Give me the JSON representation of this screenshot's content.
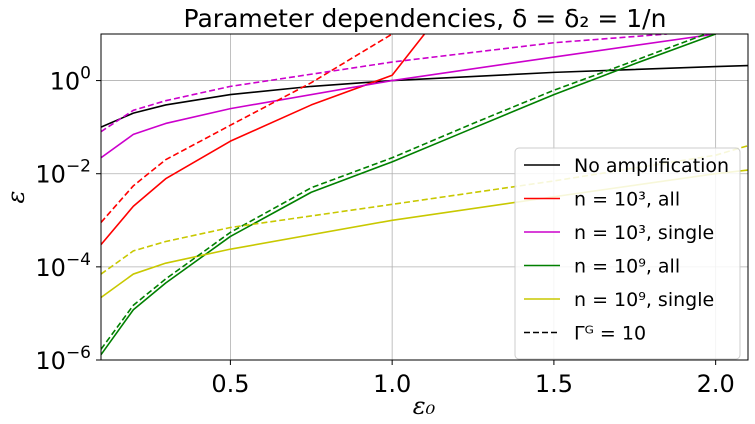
{
  "chart_data": {
    "type": "line",
    "title": "Parameter dependencies, δ = δ₂ = 1/n",
    "xlabel": "ε₀",
    "ylabel": "ε",
    "xlim": [
      0.1,
      2.1
    ],
    "ylim": [
      1e-06,
      10
    ],
    "yscale": "log",
    "grid": true,
    "legend_position": "lower-right",
    "x_ticks": [
      {
        "value": 0.5,
        "label": "0.5"
      },
      {
        "value": 1.0,
        "label": "1.0"
      },
      {
        "value": 1.5,
        "label": "1.5"
      },
      {
        "value": 2.0,
        "label": "2.0"
      }
    ],
    "y_ticks": [
      {
        "value": 1e-06,
        "base": "10",
        "exp": "−6"
      },
      {
        "value": 0.0001,
        "base": "10",
        "exp": "−4"
      },
      {
        "value": 0.01,
        "base": "10",
        "exp": "−2"
      },
      {
        "value": 1,
        "base": "10",
        "exp": "0"
      }
    ],
    "series": [
      {
        "name": "No amplification",
        "color": "#000000",
        "dash": false,
        "x": [
          0.1,
          0.2,
          0.3,
          0.5,
          0.75,
          1.0,
          1.5,
          2.0,
          2.1
        ],
        "y": [
          0.1,
          0.2,
          0.3,
          0.5,
          0.75,
          1.0,
          1.5,
          2.0,
          2.1
        ]
      },
      {
        "name": "n = 10³, all",
        "color": "#ff0000",
        "dash": false,
        "x": [
          0.1,
          0.2,
          0.3,
          0.5,
          0.75,
          1.0,
          1.1
        ],
        "y": [
          0.0003,
          0.002,
          0.0078,
          0.05,
          0.3,
          1.3,
          10
        ]
      },
      {
        "name": "n = 10³, single",
        "color": "#cc00cc",
        "dash": false,
        "x": [
          0.1,
          0.2,
          0.3,
          0.5,
          1.0,
          1.5,
          2.0
        ],
        "y": [
          0.022,
          0.07,
          0.12,
          0.25,
          1.0,
          3.2,
          10
        ]
      },
      {
        "name": "n = 10⁹, all",
        "color": "#008000",
        "dash": false,
        "x": [
          0.1,
          0.2,
          0.3,
          0.5,
          0.75,
          1.0,
          1.25,
          1.5,
          1.75,
          2.0
        ],
        "y": [
          1.3e-06,
          1.2e-05,
          4.5e-05,
          0.00045,
          0.004,
          0.018,
          0.095,
          0.5,
          2.3,
          10
        ]
      },
      {
        "name": "n = 10⁹, single",
        "color": "#c8c800",
        "dash": false,
        "x": [
          0.1,
          0.2,
          0.3,
          0.5,
          1.0,
          1.5,
          2.0,
          2.1
        ],
        "y": [
          2.2e-05,
          7e-05,
          0.00012,
          0.00024,
          0.001,
          0.0032,
          0.01,
          0.012
        ]
      },
      {
        "name": "Γᴳ = 10",
        "color": "#000000",
        "dash": true,
        "legend_only": true,
        "x": [],
        "y": []
      },
      {
        "name": "",
        "color": "#ff0000",
        "dash": true,
        "x": [
          0.1,
          0.2,
          0.3,
          0.5,
          0.75,
          1.0
        ],
        "y": [
          0.0009,
          0.0055,
          0.02,
          0.11,
          0.9,
          10
        ]
      },
      {
        "name": "",
        "color": "#cc00cc",
        "dash": true,
        "x": [
          0.1,
          0.2,
          0.3,
          0.5,
          1.0,
          1.5,
          1.85
        ],
        "y": [
          0.08,
          0.23,
          0.37,
          0.75,
          2.5,
          6.5,
          10
        ]
      },
      {
        "name": "",
        "color": "#008000",
        "dash": true,
        "x": [
          0.1,
          0.2,
          0.3,
          0.5,
          0.75,
          1.0,
          1.25,
          1.5,
          1.7,
          1.97
        ],
        "y": [
          1.7e-06,
          1.5e-05,
          5.5e-05,
          0.00055,
          0.005,
          0.022,
          0.12,
          0.62,
          2.0,
          10
        ]
      },
      {
        "name": "",
        "color": "#c8c800",
        "dash": true,
        "x": [
          0.1,
          0.2,
          0.3,
          0.5,
          1.0,
          1.5,
          2.0,
          2.1
        ],
        "y": [
          7e-05,
          0.00022,
          0.00035,
          0.0007,
          0.0022,
          0.007,
          0.025,
          0.04
        ]
      }
    ]
  }
}
